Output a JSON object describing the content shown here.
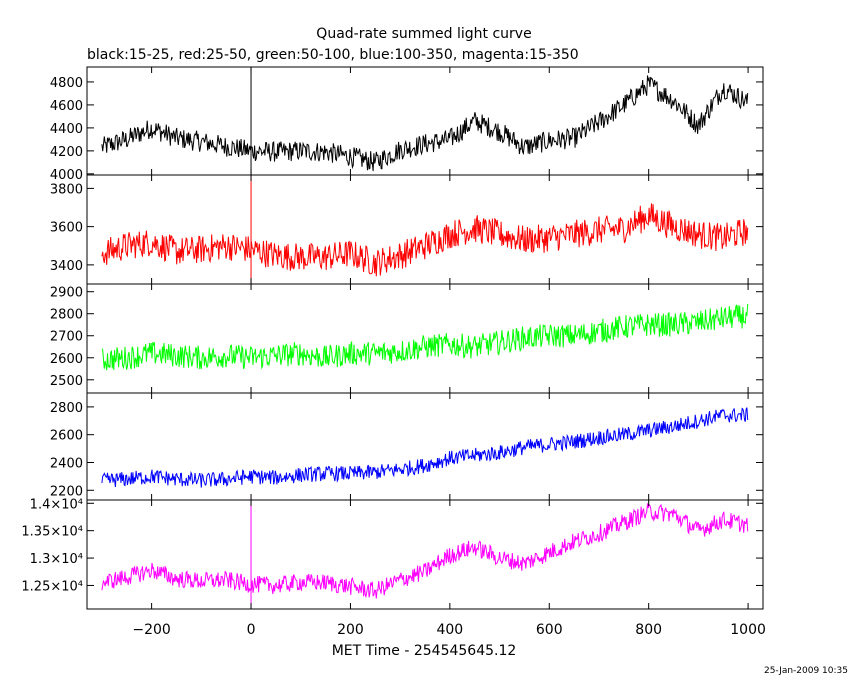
{
  "title": "Quad-rate summed light curve",
  "subtitle": "black:15-25, red:25-50, green:50-100, blue:100-350, magenta:15-350",
  "xlabel": "MET Time - 254545645.12",
  "timestamp": "25-Jan-2009 10:35",
  "chart_data": [
    {
      "type": "line",
      "name": "black:15-25",
      "color": "#000000",
      "xlim": [
        -330,
        1030
      ],
      "ylim": [
        3990,
        4930
      ],
      "yticks": [
        4000,
        4200,
        4400,
        4600,
        4800
      ],
      "yticklabels": [
        "4000",
        "4200",
        "4400",
        "4600",
        "4800"
      ],
      "x": [
        -300,
        -250,
        -200,
        -150,
        -100,
        -50,
        0,
        50,
        100,
        150,
        200,
        250,
        300,
        350,
        400,
        450,
        500,
        550,
        600,
        650,
        700,
        750,
        800,
        850,
        900,
        950,
        1000
      ],
      "y": [
        4230,
        4300,
        4400,
        4310,
        4280,
        4240,
        4200,
        4190,
        4200,
        4190,
        4150,
        4100,
        4210,
        4260,
        4300,
        4460,
        4370,
        4230,
        4290,
        4310,
        4450,
        4600,
        4780,
        4640,
        4420,
        4750,
        4620
      ],
      "noise": 90
    },
    {
      "type": "line",
      "name": "red:25-50",
      "color": "#ff0000",
      "xlim": [
        -330,
        1030
      ],
      "ylim": [
        3300,
        3870
      ],
      "yticks": [
        3400,
        3600,
        3800
      ],
      "yticklabels": [
        "3400",
        "3600",
        "3800"
      ],
      "x": [
        -300,
        -250,
        -200,
        -150,
        -100,
        -50,
        0,
        50,
        100,
        150,
        200,
        250,
        300,
        350,
        400,
        450,
        500,
        550,
        600,
        650,
        700,
        750,
        800,
        850,
        900,
        950,
        1000
      ],
      "y": [
        3460,
        3500,
        3520,
        3470,
        3480,
        3500,
        3480,
        3450,
        3440,
        3440,
        3460,
        3410,
        3450,
        3500,
        3560,
        3590,
        3560,
        3530,
        3540,
        3560,
        3580,
        3590,
        3660,
        3600,
        3560,
        3540,
        3580
      ],
      "noise": 75
    },
    {
      "type": "line",
      "name": "green:50-100",
      "color": "#00ff00",
      "xlim": [
        -330,
        1030
      ],
      "ylim": [
        2440,
        2935
      ],
      "yticks": [
        2500,
        2600,
        2700,
        2800,
        2900
      ],
      "yticklabels": [
        "2500",
        "2600",
        "2700",
        "2800",
        "2900"
      ],
      "x": [
        -300,
        -250,
        -200,
        -150,
        -100,
        -50,
        0,
        50,
        100,
        150,
        200,
        250,
        300,
        350,
        400,
        450,
        500,
        550,
        600,
        650,
        700,
        750,
        800,
        850,
        900,
        950,
        1000
      ],
      "y": [
        2590,
        2600,
        2620,
        2610,
        2600,
        2610,
        2600,
        2610,
        2620,
        2600,
        2620,
        2620,
        2630,
        2650,
        2660,
        2650,
        2670,
        2690,
        2700,
        2700,
        2720,
        2740,
        2750,
        2750,
        2760,
        2780,
        2790
      ],
      "noise": 55
    },
    {
      "type": "line",
      "name": "blue:100-350",
      "color": "#0000ff",
      "xlim": [
        -330,
        1030
      ],
      "ylim": [
        2130,
        2900
      ],
      "yticks": [
        2200,
        2400,
        2600,
        2800
      ],
      "yticklabels": [
        "2200",
        "2400",
        "2600",
        "2800"
      ],
      "x": [
        -300,
        -250,
        -200,
        -150,
        -100,
        -50,
        0,
        50,
        100,
        150,
        200,
        250,
        300,
        350,
        400,
        450,
        500,
        550,
        600,
        650,
        700,
        750,
        800,
        850,
        900,
        950,
        1000
      ],
      "y": [
        2270,
        2280,
        2300,
        2280,
        2270,
        2280,
        2300,
        2290,
        2310,
        2320,
        2320,
        2330,
        2350,
        2380,
        2430,
        2450,
        2470,
        2510,
        2530,
        2550,
        2580,
        2600,
        2630,
        2660,
        2700,
        2740,
        2740
      ],
      "noise": 55
    },
    {
      "type": "line",
      "name": "magenta:15-350",
      "color": "#ff00ff",
      "xlim": [
        -330,
        1030
      ],
      "ylim": [
        12070,
        14060
      ],
      "yticks": [
        12500,
        13000,
        13500,
        14000
      ],
      "yticklabels": [
        "1.25×10⁴",
        "1.3×10⁴",
        "1.35×10⁴",
        "1.4×10⁴"
      ],
      "x": [
        -300,
        -250,
        -200,
        -150,
        -100,
        -50,
        0,
        50,
        100,
        150,
        200,
        250,
        300,
        350,
        400,
        450,
        500,
        550,
        600,
        650,
        700,
        750,
        800,
        850,
        900,
        950,
        1000
      ],
      "y": [
        12550,
        12650,
        12780,
        12620,
        12580,
        12600,
        12520,
        12500,
        12560,
        12550,
        12480,
        12400,
        12600,
        12750,
        13050,
        13200,
        13000,
        12900,
        13100,
        13300,
        13450,
        13650,
        13850,
        13800,
        13500,
        13700,
        13600
      ],
      "noise": 160
    }
  ],
  "xaxis": {
    "ticks": [
      -200,
      0,
      200,
      400,
      600,
      800,
      1000
    ],
    "ticklabels": [
      "−200",
      "0",
      "200",
      "400",
      "600",
      "800",
      "1000"
    ]
  },
  "spike": {
    "x": 0,
    "panels": [
      0,
      1,
      4
    ]
  }
}
